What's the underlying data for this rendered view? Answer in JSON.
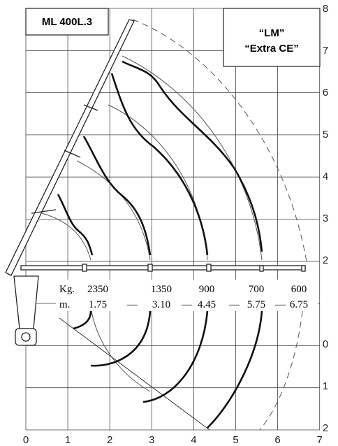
{
  "header": {
    "model": "ML 400L.3",
    "variant_line1": "“LM”",
    "variant_line2": "“Extra CE”"
  },
  "x_axis_labels": [
    "0",
    "1",
    "2",
    "3",
    "4",
    "5",
    "6",
    "7"
  ],
  "y_axis_labels_upper": [
    "8",
    "7",
    "6",
    "5",
    "4",
    "3",
    "2"
  ],
  "y_axis_labels_lower": [
    "0",
    "1",
    "2"
  ],
  "load_table": {
    "kg_label": "Kg.",
    "m_label": "m.",
    "loads": [
      "2350",
      "1350",
      "900",
      "700",
      "600"
    ],
    "reaches": [
      "1.75",
      "3.10",
      "4.45",
      "5.75",
      "6.75"
    ],
    "separator": "—"
  }
}
